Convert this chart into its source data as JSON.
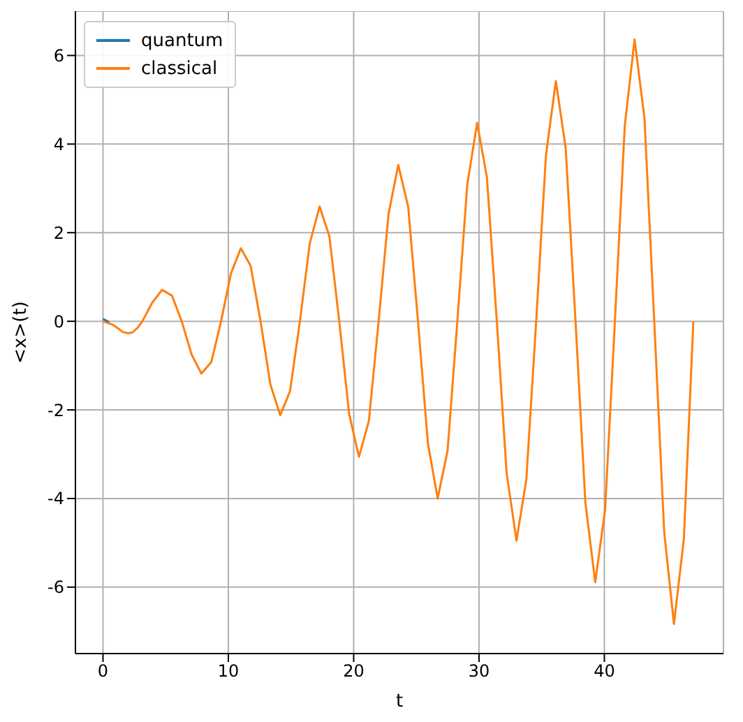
{
  "chart_data": {
    "type": "line",
    "xlabel": "t",
    "ylabel": "<x>(t)",
    "x": [
      0,
      0.5,
      0.79,
      1.2,
      1.57,
      2.0,
      2.36,
      2.75,
      3.14,
      3.93,
      4.71,
      5.5,
      6.28,
      7.07,
      7.85,
      8.64,
      9.42,
      10.21,
      11.0,
      11.78,
      12.57,
      13.35,
      14.14,
      14.92,
      15.71,
      16.49,
      17.28,
      18.06,
      18.85,
      19.63,
      20.42,
      21.21,
      21.99,
      22.78,
      23.56,
      24.35,
      25.13,
      25.92,
      26.7,
      27.49,
      28.27,
      29.06,
      29.85,
      30.63,
      31.42,
      32.2,
      32.99,
      33.77,
      34.56,
      35.34,
      36.13,
      36.91,
      37.7,
      38.48,
      39.27,
      40.06,
      40.84,
      41.63,
      42.41,
      43.2,
      43.98,
      44.77,
      45.55,
      46.34,
      47.1
    ],
    "series": [
      {
        "name": "quantum",
        "color": "#1f77b4",
        "values": [
          0.05,
          -0.02,
          null,
          null,
          null,
          null,
          null,
          null,
          null,
          null,
          null,
          null,
          null,
          null,
          null,
          null,
          null,
          null,
          null,
          null,
          null,
          null,
          null,
          null,
          null,
          null,
          null,
          null,
          null,
          null,
          null,
          null,
          null,
          null,
          null,
          null,
          null,
          null,
          null,
          null,
          null,
          null,
          null,
          null,
          null,
          null,
          null,
          null,
          null,
          null,
          null,
          null,
          null,
          null,
          null,
          null,
          null,
          null,
          null,
          null,
          null,
          null,
          null,
          null,
          null
        ]
      },
      {
        "name": "classical",
        "color": "#ff7f0e",
        "values": [
          0,
          -0.05,
          -0.08,
          -0.16,
          -0.24,
          -0.27,
          -0.25,
          -0.15,
          0,
          0.42,
          0.71,
          0.58,
          0,
          -0.75,
          -1.18,
          -0.92,
          0,
          1.08,
          1.65,
          1.25,
          0,
          -1.42,
          -2.12,
          -1.58,
          0,
          1.75,
          2.59,
          1.92,
          0,
          -2.08,
          -3.06,
          -2.25,
          0,
          2.42,
          3.53,
          2.58,
          0,
          -2.75,
          -4.0,
          -2.92,
          0,
          3.08,
          4.48,
          3.25,
          0,
          -3.42,
          -4.95,
          -3.58,
          0,
          3.75,
          5.42,
          3.92,
          0,
          -4.08,
          -5.89,
          -4.25,
          0,
          4.42,
          6.36,
          4.58,
          0,
          -4.75,
          -6.83,
          -4.92,
          0
        ]
      }
    ],
    "xlim": [
      -2.2,
      49.5
    ],
    "ylim": [
      -7.5,
      7.0
    ],
    "xticks": [
      0,
      10,
      20,
      30,
      40
    ],
    "yticks": [
      -6,
      -4,
      -2,
      0,
      2,
      4,
      6
    ],
    "grid": true,
    "legend": "top left",
    "marker": "none",
    "line_style": "solid"
  }
}
